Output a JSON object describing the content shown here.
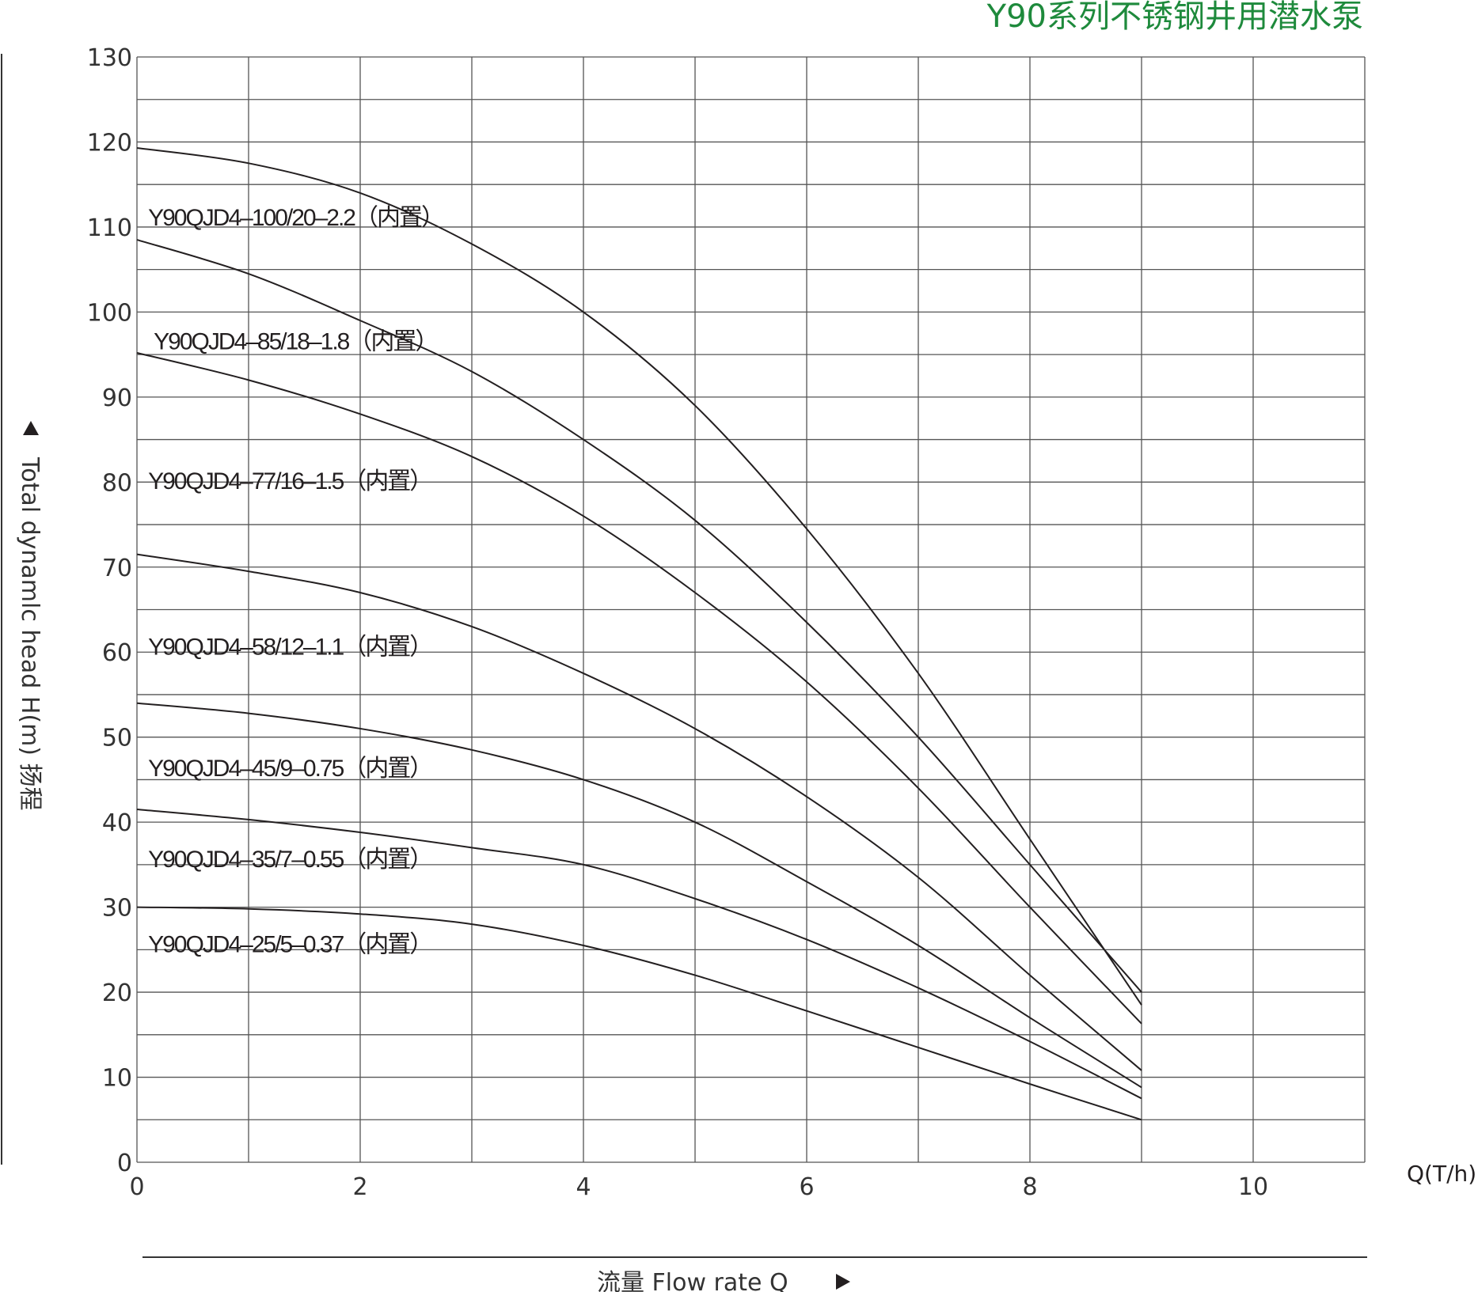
{
  "colors": {
    "title": "#1e8a3c",
    "grid": "#555555",
    "curve": "#231f20"
  },
  "chart_data": {
    "type": "line",
    "title": "Y90系列不锈钢井用潜水泵",
    "xlabel": "流量  Flow rate Q",
    "ylabel": "Total dynamlc head H(m) 扬程",
    "x_unit_label": "Q(T/h)",
    "xlim": [
      0,
      11
    ],
    "ylim": [
      0,
      130
    ],
    "x_ticks": [
      0,
      2,
      4,
      6,
      8,
      10
    ],
    "y_ticks": [
      0,
      10,
      20,
      30,
      40,
      50,
      60,
      70,
      80,
      90,
      100,
      110,
      120,
      130
    ],
    "grid": true,
    "series": [
      {
        "name": "Y90QJD4–100/20–2.2（内置）",
        "x": [
          0,
          1,
          2,
          3,
          4,
          5,
          6,
          7,
          8,
          9
        ],
        "y": [
          119.3,
          117.5,
          114.0,
          108.0,
          100.0,
          89.0,
          74.5,
          57.5,
          38.0,
          18.5
        ]
      },
      {
        "name": "Y90QJD4–85/18–1.8（内置）",
        "x": [
          0,
          1,
          2,
          3,
          4,
          5,
          6,
          7,
          8,
          9
        ],
        "y": [
          108.5,
          104.5,
          99.0,
          93.0,
          85.0,
          75.5,
          63.5,
          50.0,
          35.0,
          20.0
        ]
      },
      {
        "name": "Y90QJD4–77/16–1.5（内置）",
        "x": [
          0,
          1,
          2,
          3,
          4,
          5,
          6,
          7,
          8,
          9
        ],
        "y": [
          95.2,
          92.0,
          88.0,
          83.0,
          76.0,
          67.0,
          56.5,
          44.0,
          30.0,
          16.3
        ]
      },
      {
        "name": "Y90QJD4–58/12–1.1（内置）",
        "x": [
          0,
          1,
          2,
          3,
          4,
          5,
          6,
          7,
          8,
          9
        ],
        "y": [
          71.5,
          69.5,
          67.0,
          63.0,
          57.5,
          51.0,
          43.0,
          33.5,
          22.0,
          10.8
        ]
      },
      {
        "name": "Y90QJD4–45/9–0.75（内置）",
        "x": [
          0,
          1,
          2,
          3,
          4,
          5,
          6,
          7,
          8,
          9
        ],
        "y": [
          54.0,
          52.8,
          51.0,
          48.5,
          45.0,
          40.0,
          33.0,
          25.5,
          17.0,
          8.8
        ]
      },
      {
        "name": "Y90QJD4–35/7–0.55（内置）",
        "x": [
          0,
          1,
          2,
          3,
          4,
          5,
          6,
          7,
          8,
          9
        ],
        "y": [
          41.5,
          40.3,
          38.8,
          37.0,
          35.0,
          31.0,
          26.2,
          20.5,
          14.2,
          7.5
        ]
      },
      {
        "name": "Y90QJD4–25/5–0.37（内置）",
        "x": [
          0,
          1,
          2,
          3,
          4,
          5,
          6,
          7,
          8,
          9
        ],
        "y": [
          30.0,
          29.8,
          29.2,
          28.0,
          25.5,
          22.0,
          17.8,
          13.5,
          9.2,
          5.0
        ]
      }
    ],
    "curve_labels": [
      {
        "text": "Y90QJD4–100/20–2.2（内置）",
        "at_x": 0.1,
        "at_y": 110.2
      },
      {
        "text": "Y90QJD4–85/18–1.8（内置）",
        "at_x": 0.15,
        "at_y": 95.6
      },
      {
        "text": "Y90QJD4–77/16–1.5（内置）",
        "at_x": 0.1,
        "at_y": 79.2
      },
      {
        "text": "Y90QJD4–58/12–1.1（内置）",
        "at_x": 0.1,
        "at_y": 59.7
      },
      {
        "text": "Y90QJD4–45/9–0.75（内置）",
        "at_x": 0.1,
        "at_y": 45.4
      },
      {
        "text": "Y90QJD4–35/7–0.55（内置）",
        "at_x": 0.1,
        "at_y": 34.7
      },
      {
        "text": "Y90QJD4–25/5–0.37（内置）",
        "at_x": 0.1,
        "at_y": 24.7
      }
    ]
  }
}
